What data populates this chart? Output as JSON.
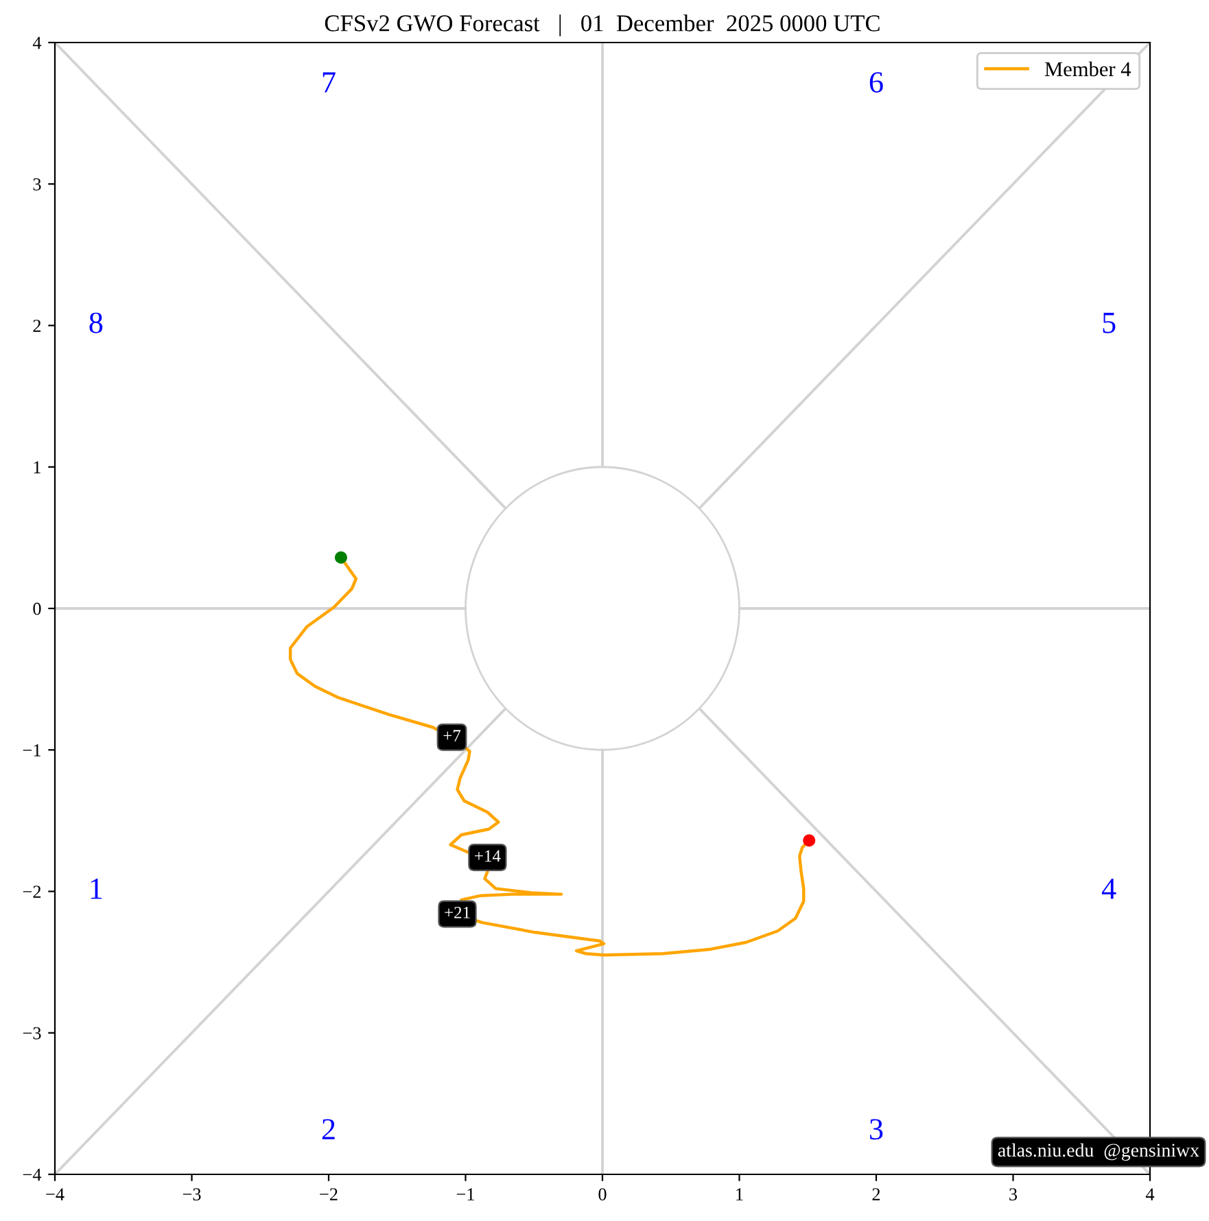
{
  "chart_data": {
    "type": "line",
    "title": "CFSv2 GWO Forecast   |   01  December  2025 0000 UTC",
    "xlim": [
      -4,
      4
    ],
    "ylim": [
      -4,
      4
    ],
    "xticks": [
      {
        "value": -4,
        "label": "−4"
      },
      {
        "value": -3,
        "label": "−3"
      },
      {
        "value": -2,
        "label": "−2"
      },
      {
        "value": -1,
        "label": "−1"
      },
      0,
      1,
      2,
      3,
      4
    ],
    "yticks": [
      {
        "value": -4,
        "label": "−4"
      },
      {
        "value": -3,
        "label": "−3"
      },
      {
        "value": -2,
        "label": "−2"
      },
      {
        "value": -1,
        "label": "−1"
      },
      0,
      1,
      2,
      3,
      4
    ],
    "grid": false,
    "legend": "top right",
    "series": [
      {
        "color": "#d3d3d3",
        "x": [
          -4,
          -1
        ],
        "values": [
          0,
          0
        ]
      },
      {
        "color": "#d3d3d3",
        "x": [
          1,
          4
        ],
        "values": [
          0,
          0
        ]
      },
      {
        "color": "#d3d3d3",
        "x": [
          0,
          0
        ],
        "values": [
          1,
          4
        ]
      },
      {
        "color": "#d3d3d3",
        "x": [
          0,
          0
        ],
        "values": [
          -1,
          -4
        ]
      },
      {
        "color": "#d3d3d3",
        "x": [
          -4,
          -0.71
        ],
        "values": [
          4,
          0.71
        ]
      },
      {
        "color": "#d3d3d3",
        "x": [
          4,
          0.71
        ],
        "values": [
          4,
          0.71
        ]
      },
      {
        "color": "#d3d3d3",
        "x": [
          -4,
          -0.71
        ],
        "values": [
          -4,
          -0.71
        ]
      },
      {
        "color": "#d3d3d3",
        "x": [
          4,
          0.71
        ],
        "values": [
          -4,
          -0.71
        ]
      },
      {
        "name": "Member 4",
        "color": "#ffa500",
        "x": [
          -1.91,
          -1.8,
          -1.83,
          -1.96,
          -2.16,
          -2.28,
          -2.28,
          -2.23,
          -2.1,
          -1.93,
          -1.56,
          -1.24,
          -1.1,
          -0.97,
          -0.98,
          -1.04,
          -1.06,
          -1.01,
          -0.84,
          -0.76,
          -0.83,
          -1.03,
          -1.11,
          -0.99,
          -0.84,
          -0.84,
          -0.86,
          -0.78,
          -0.52,
          -0.3,
          -0.66,
          -0.89,
          -1.03,
          -1.06,
          -0.88,
          -0.49,
          -0.02,
          0.01,
          -0.19,
          -0.12,
          0.01,
          0.44,
          0.78,
          1.05,
          1.28,
          1.41,
          1.47,
          1.47,
          1.45,
          1.44,
          1.46,
          1.51
        ],
        "values": [
          0.36,
          0.21,
          0.14,
          0.01,
          -0.13,
          -0.28,
          -0.36,
          -0.46,
          -0.55,
          -0.63,
          -0.75,
          -0.84,
          -0.91,
          -1.01,
          -1.07,
          -1.2,
          -1.28,
          -1.36,
          -1.44,
          -1.51,
          -1.56,
          -1.6,
          -1.67,
          -1.72,
          -1.76,
          -1.86,
          -1.91,
          -1.98,
          -2.01,
          -2.02,
          -2.02,
          -2.03,
          -2.06,
          -2.16,
          -2.22,
          -2.29,
          -2.35,
          -2.37,
          -2.42,
          -2.44,
          -2.45,
          -2.44,
          -2.41,
          -2.36,
          -2.28,
          -2.19,
          -2.07,
          -1.98,
          -1.85,
          -1.75,
          -1.69,
          -1.64
        ]
      },
      {
        "type": "scatter",
        "color": "#008000",
        "x": [
          -1.91
        ],
        "values": [
          0.36
        ]
      },
      {
        "type": "scatter",
        "color": "#ff0000",
        "x": [
          1.51
        ],
        "values": [
          -1.64
        ]
      }
    ],
    "annotations": [
      "1",
      "2",
      "3",
      "4",
      "5",
      "6",
      "7",
      "8",
      {
        "text": "+7",
        "x": -1.1,
        "y": -0.91
      },
      {
        "text": "+14",
        "x": -0.84,
        "y": -1.76
      },
      {
        "text": "+21",
        "x": -1.06,
        "y": -2.16
      },
      "atlas.niu.edu  @gensiniwx"
    ]
  }
}
